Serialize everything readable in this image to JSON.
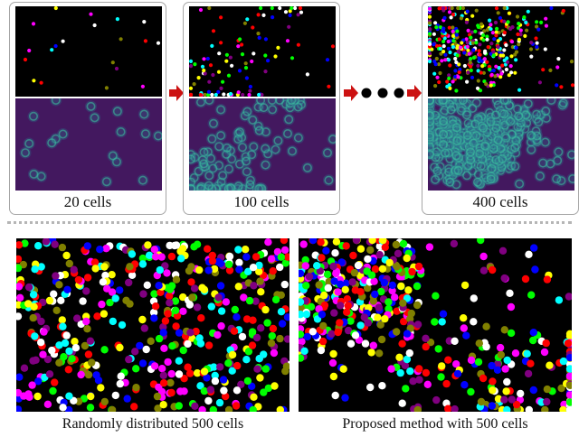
{
  "panels": [
    {
      "label": "20 cells",
      "count": 20
    },
    {
      "label": "100 cells",
      "count": 100
    },
    {
      "label": "400 cells",
      "count": 400
    }
  ],
  "comparison": {
    "random": {
      "label": "Randomly distributed 500 cells",
      "count": 500
    },
    "proposed": {
      "label": "Proposed method with 500 cells",
      "count": 500
    }
  },
  "colors": {
    "cell_palette": [
      "#ff0000",
      "#00ff00",
      "#0000ff",
      "#ffff00",
      "#ff00ff",
      "#00ffff",
      "#800080",
      "#808000",
      "#ffffff"
    ],
    "density_background": "#43185f",
    "arrow": "#cc1111",
    "divider": "#b5b5b5"
  }
}
